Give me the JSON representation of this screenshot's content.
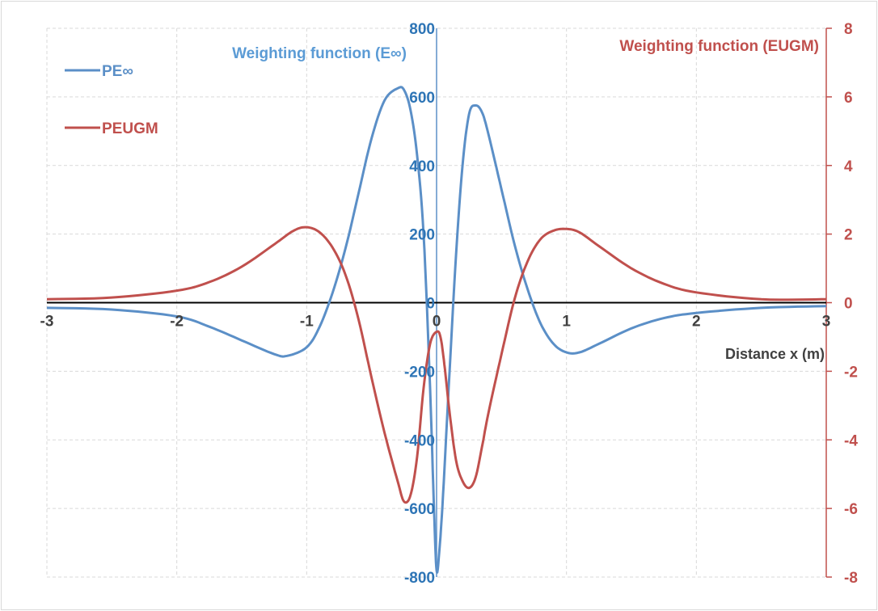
{
  "chart_data": {
    "type": "line",
    "xlabel": "Distance x (m)",
    "ylabel_left": "Weighting function (E∞)",
    "ylabel_right": "Weighting function (EUGM)",
    "xlim": [
      -3,
      3
    ],
    "ylim_left": [
      -800,
      800
    ],
    "ylim_right": [
      -8,
      8
    ],
    "x_ticks": [
      "-3",
      "-2",
      "-1",
      "0",
      "1",
      "2",
      "3"
    ],
    "y_ticks_left": [
      "800",
      "600",
      "400",
      "200",
      "0",
      "-200",
      "-400",
      "-600",
      "-800"
    ],
    "y_ticks_right": [
      "8",
      "6",
      "4",
      "2",
      "0",
      "-2",
      "-4",
      "-6",
      "-8"
    ],
    "grid": true,
    "legend_position": "top-left",
    "colors": {
      "pe_inf": "#5b8fc7",
      "pe_ugm": "#c0504d",
      "left_axis_text": "#2e75b6",
      "right_axis": "#c0504d",
      "zero_line": "#000000",
      "grid": "#d9d9d9"
    },
    "series": [
      {
        "name": "PE∞",
        "axis": "left",
        "x": [
          -3,
          -2.5,
          -2,
          -1.75,
          -1.5,
          -1.25,
          -1.15,
          -1.0,
          -0.9,
          -0.8,
          -0.7,
          -0.6,
          -0.5,
          -0.4,
          -0.3,
          -0.25,
          -0.2,
          -0.15,
          -0.1,
          -0.05,
          -0.02,
          0.0,
          0.02,
          0.05,
          0.1,
          0.15,
          0.2,
          0.25,
          0.3,
          0.35,
          0.4,
          0.5,
          0.6,
          0.7,
          0.8,
          0.9,
          1.0,
          1.1,
          1.25,
          1.5,
          1.75,
          2.0,
          2.5,
          3.0
        ],
        "y": [
          -15,
          -20,
          -40,
          -70,
          -110,
          -150,
          -155,
          -130,
          -70,
          30,
          160,
          320,
          480,
          590,
          625,
          620,
          560,
          430,
          200,
          -250,
          -600,
          -780,
          -730,
          -560,
          -200,
          140,
          400,
          550,
          575,
          555,
          490,
          330,
          170,
          40,
          -60,
          -120,
          -145,
          -145,
          -120,
          -75,
          -45,
          -30,
          -15,
          -10
        ]
      },
      {
        "name": "PEUGM",
        "axis": "right",
        "x": [
          -3,
          -2.5,
          -2,
          -1.75,
          -1.5,
          -1.25,
          -1.1,
          -1.0,
          -0.9,
          -0.8,
          -0.7,
          -0.6,
          -0.5,
          -0.4,
          -0.3,
          -0.25,
          -0.2,
          -0.15,
          -0.1,
          -0.05,
          0.0,
          0.03,
          0.06,
          0.1,
          0.15,
          0.2,
          0.25,
          0.3,
          0.35,
          0.4,
          0.5,
          0.6,
          0.7,
          0.8,
          0.9,
          1.0,
          1.1,
          1.25,
          1.5,
          1.75,
          2.0,
          2.5,
          3.0
        ],
        "y": [
          0.1,
          0.15,
          0.35,
          0.6,
          1.05,
          1.7,
          2.1,
          2.2,
          2.05,
          1.6,
          0.8,
          -0.5,
          -2.2,
          -3.8,
          -5.2,
          -5.8,
          -5.6,
          -4.5,
          -2.5,
          -1.2,
          -0.85,
          -1.0,
          -1.8,
          -3.2,
          -4.6,
          -5.2,
          -5.4,
          -5.1,
          -4.2,
          -3.2,
          -1.5,
          0.1,
          1.2,
          1.85,
          2.1,
          2.15,
          2.05,
          1.65,
          1.0,
          0.55,
          0.3,
          0.1,
          0.1
        ]
      }
    ]
  }
}
